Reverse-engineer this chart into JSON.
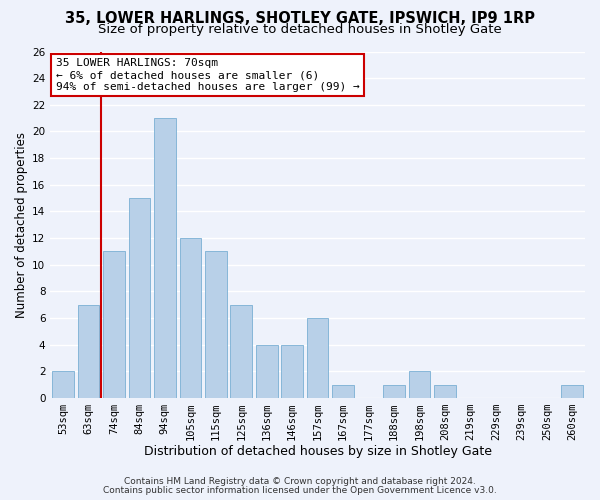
{
  "title": "35, LOWER HARLINGS, SHOTLEY GATE, IPSWICH, IP9 1RP",
  "subtitle": "Size of property relative to detached houses in Shotley Gate",
  "xlabel": "Distribution of detached houses by size in Shotley Gate",
  "ylabel": "Number of detached properties",
  "bar_labels": [
    "53sqm",
    "63sqm",
    "74sqm",
    "84sqm",
    "94sqm",
    "105sqm",
    "115sqm",
    "125sqm",
    "136sqm",
    "146sqm",
    "157sqm",
    "167sqm",
    "177sqm",
    "188sqm",
    "198sqm",
    "208sqm",
    "219sqm",
    "229sqm",
    "239sqm",
    "250sqm",
    "260sqm"
  ],
  "bar_values": [
    2,
    7,
    11,
    15,
    21,
    12,
    11,
    7,
    4,
    4,
    6,
    1,
    0,
    1,
    2,
    1,
    0,
    0,
    0,
    0,
    1
  ],
  "bar_color": "#b8d0e8",
  "bar_edge_color": "#7aafd4",
  "vline_color": "#cc0000",
  "vline_index": 2,
  "annotation_line1": "35 LOWER HARLINGS: 70sqm",
  "annotation_line2": "← 6% of detached houses are smaller (6)",
  "annotation_line3": "94% of semi-detached houses are larger (99) →",
  "annotation_box_color": "#ffffff",
  "annotation_box_edge": "#cc0000",
  "ylim": [
    0,
    26
  ],
  "yticks": [
    0,
    2,
    4,
    6,
    8,
    10,
    12,
    14,
    16,
    18,
    20,
    22,
    24,
    26
  ],
  "footer1": "Contains HM Land Registry data © Crown copyright and database right 2024.",
  "footer2": "Contains public sector information licensed under the Open Government Licence v3.0.",
  "background_color": "#eef2fb",
  "grid_color": "#ffffff",
  "title_fontsize": 10.5,
  "subtitle_fontsize": 9.5,
  "xlabel_fontsize": 9,
  "ylabel_fontsize": 8.5,
  "tick_fontsize": 7.5,
  "annot_fontsize": 8,
  "footer_fontsize": 6.5
}
